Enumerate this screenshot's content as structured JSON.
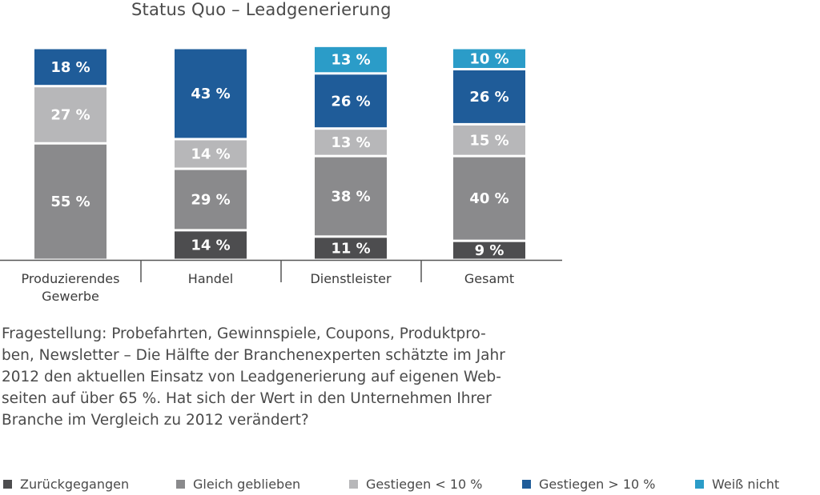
{
  "chart_data": {
    "type": "bar",
    "stacked": true,
    "title": "Status Quo – Leadgenerierung",
    "categories": [
      [
        "Produzierendes",
        "Gewerbe"
      ],
      [
        "Handel"
      ],
      [
        "Dienstleister"
      ],
      [
        "Gesamt"
      ]
    ],
    "series": [
      {
        "name": "Zurückgegangen",
        "color": "#4d4d4f",
        "values": [
          0,
          14,
          11,
          9
        ]
      },
      {
        "name": "Gleich geblieben",
        "color": "#8a8a8c",
        "values": [
          55,
          29,
          38,
          40
        ]
      },
      {
        "name": "Gestiegen < 10 %",
        "color": "#b7b7b9",
        "values": [
          27,
          14,
          13,
          15
        ]
      },
      {
        "name": "Gestiegen > 10 %",
        "color": "#1f5c99",
        "values": [
          18,
          43,
          26,
          26
        ]
      },
      {
        "name": "Weiß nicht",
        "color": "#2b9cc8",
        "values": [
          0,
          0,
          13,
          10
        ]
      }
    ],
    "value_suffix": " %",
    "ylim": [
      0,
      100
    ],
    "legend_position": "bottom",
    "grid": false
  },
  "question": "Fragestellung: Probefahrten, Gewinnspiele, Coupons, Produktpro-\nben, Newsletter – Die Hälfte der Branchenexperten schätzte im Jahr\n2012 den aktuellen Einsatz von Leadgenerierung auf eigenen Web-\nseiten auf über 65 %. Hat sich der Wert in den Unternehmen Ihrer\nBranche im Vergleich zu 2012 verändert?"
}
